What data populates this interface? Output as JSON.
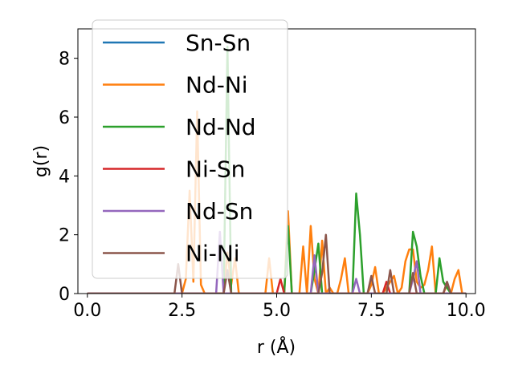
{
  "chart_data": {
    "type": "line",
    "title": "",
    "xlabel": "r (Å)",
    "ylabel": "g(r)",
    "xlim": [
      -0.25,
      10.25
    ],
    "ylim": [
      0,
      9.0
    ],
    "xticks": [
      0.0,
      2.5,
      5.0,
      7.5,
      10.0
    ],
    "xtick_labels": [
      "0.0",
      "2.5",
      "5.0",
      "7.5",
      "10.0"
    ],
    "yticks": [
      0,
      2,
      4,
      6,
      8
    ],
    "ytick_labels": [
      "0",
      "2",
      "4",
      "6",
      "8"
    ],
    "grid": false,
    "legend_position": "upper-left",
    "series": [
      {
        "name": "Sn-Sn",
        "color": "#1f77b4",
        "x": [
          0,
          10
        ],
        "y": [
          0,
          0
        ]
      },
      {
        "name": "Nd-Ni",
        "color": "#ff7f0e",
        "x": [
          0,
          2.5,
          2.6,
          2.7,
          2.8,
          2.9,
          3.0,
          3.1,
          3.6,
          3.7,
          3.8,
          3.9,
          4.0,
          4.7,
          4.8,
          4.9,
          5.2,
          5.3,
          5.4,
          5.5,
          5.6,
          5.7,
          5.8,
          5.9,
          6.0,
          6.1,
          6.2,
          6.3,
          6.4,
          6.5,
          6.6,
          6.7,
          6.8,
          6.9,
          7.2,
          7.4,
          7.5,
          7.6,
          7.7,
          7.8,
          7.9,
          8.0,
          8.1,
          8.2,
          8.3,
          8.4,
          8.5,
          8.6,
          8.7,
          8.8,
          8.9,
          9.0,
          9.1,
          9.2,
          9.3,
          9.4,
          9.5,
          9.6,
          9.7,
          9.8,
          9.9,
          10.0
        ],
        "y": [
          0,
          0,
          0.5,
          3.5,
          0.4,
          6.2,
          0.3,
          0,
          0,
          1.4,
          0.3,
          1.2,
          0,
          0,
          1.2,
          0,
          0,
          2.8,
          0,
          0,
          0,
          1.6,
          0,
          2.3,
          0.5,
          0,
          1.8,
          0,
          0.2,
          0,
          0,
          0.5,
          1.2,
          0,
          0,
          0,
          0.3,
          0.9,
          0,
          0,
          0.2,
          0.4,
          0.6,
          0,
          0.2,
          1.1,
          1.5,
          1.5,
          0.4,
          0.2,
          0.3,
          0.8,
          1.6,
          0,
          0,
          0,
          0.3,
          0,
          0.5,
          0.8,
          0,
          0
        ]
      },
      {
        "name": "Nd-Nd",
        "color": "#2ca02c",
        "x": [
          0,
          3.6,
          3.7,
          3.8,
          5.2,
          5.3,
          5.4,
          5.9,
          6.0,
          6.1,
          6.2,
          6.3,
          7.0,
          7.1,
          7.2,
          7.3,
          8.5,
          8.6,
          8.7,
          8.8,
          8.9,
          9.2,
          9.3,
          9.4,
          9.5,
          9.6,
          10.0
        ],
        "y": [
          0,
          0,
          8.4,
          0,
          0,
          2.3,
          0,
          0,
          0.8,
          1.7,
          0,
          0,
          0,
          3.4,
          2.0,
          0,
          0,
          2.1,
          1.6,
          0.6,
          0,
          0,
          1.2,
          0.4,
          0.2,
          0,
          0
        ]
      },
      {
        "name": "Ni-Sn",
        "color": "#d62728",
        "x": [
          0,
          5.0,
          5.1,
          5.2,
          7.7,
          7.8,
          7.9,
          8.0,
          10.0
        ],
        "y": [
          0,
          0,
          0.5,
          0,
          0,
          0,
          0.4,
          0,
          0
        ]
      },
      {
        "name": "Nd-Sn",
        "color": "#9467bd",
        "x": [
          0,
          3.4,
          3.5,
          3.6,
          5.9,
          6.0,
          6.1,
          7.0,
          7.1,
          7.2,
          8.5,
          8.6,
          8.7,
          8.8,
          10.0
        ],
        "y": [
          0,
          0,
          2.1,
          0,
          0,
          1.3,
          0,
          0,
          0.5,
          0,
          0,
          0.5,
          1.1,
          0,
          0
        ]
      },
      {
        "name": "Ni-Ni",
        "color": "#8c564b",
        "x": [
          0,
          2.3,
          2.4,
          2.5,
          3.6,
          3.7,
          3.8,
          6.1,
          6.2,
          6.3,
          6.4,
          7.4,
          7.5,
          7.6,
          7.9,
          8.0,
          8.1,
          8.5,
          8.6,
          8.7,
          9.4,
          9.5,
          9.6,
          10.0
        ],
        "y": [
          0,
          0,
          1.0,
          0,
          0,
          0.8,
          0,
          0,
          0.7,
          2.0,
          0,
          0,
          0.6,
          0,
          0,
          0.8,
          0,
          0,
          0.7,
          0,
          0,
          0.4,
          0,
          0
        ]
      }
    ]
  }
}
